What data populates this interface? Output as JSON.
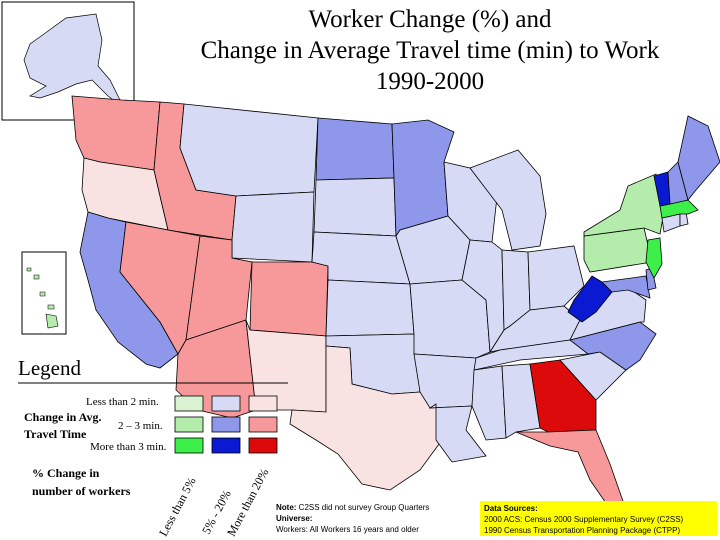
{
  "title": {
    "line1": "Worker Change (%) and",
    "line2": "Change in Average Travel time (min) to Work",
    "line3": "1990-2000"
  },
  "legend": {
    "title": "Legend",
    "travel_label_1": "Change in Avg.",
    "travel_label_2": "Travel Time",
    "rows": [
      "Less than 2 min.",
      "2 – 3 min.",
      "More than 3 min."
    ],
    "worker_label_1": "% Change in",
    "worker_label_2": "number of workers",
    "columns": [
      "Less than 5%",
      "5% - 20%",
      "More than 20%"
    ],
    "colors": [
      [
        "#d9f2cf",
        "#d6daf5",
        "#f9e3e2"
      ],
      [
        "#b4ecab",
        "#8e97ea",
        "#f7999a"
      ],
      [
        "#3df049",
        "#0a1ad2",
        "#dd0a0b"
      ]
    ]
  },
  "note": {
    "line1_bold": "Note:",
    "line1": " C2SS did not survey Group Quarters",
    "line2_bold": "Universe:",
    "line3": "Workers: All Workers 16 years and older"
  },
  "sources": {
    "title": "Data Sources:",
    "line1": "2000 ACS: Census 2000 Supplementary Survey (C2SS)",
    "line2": "1990 Census Transportation Planning Package (CTPP)"
  },
  "map_colors": {
    "pale_blue": "#d6daf5",
    "mid_blue": "#8e97ea",
    "dark_blue": "#0a1ad2",
    "pale_pink": "#f9e3e2",
    "mid_pink": "#f7999a",
    "red": "#dd0a0b",
    "pale_green": "#b4ecab",
    "bright_green": "#3df049"
  }
}
